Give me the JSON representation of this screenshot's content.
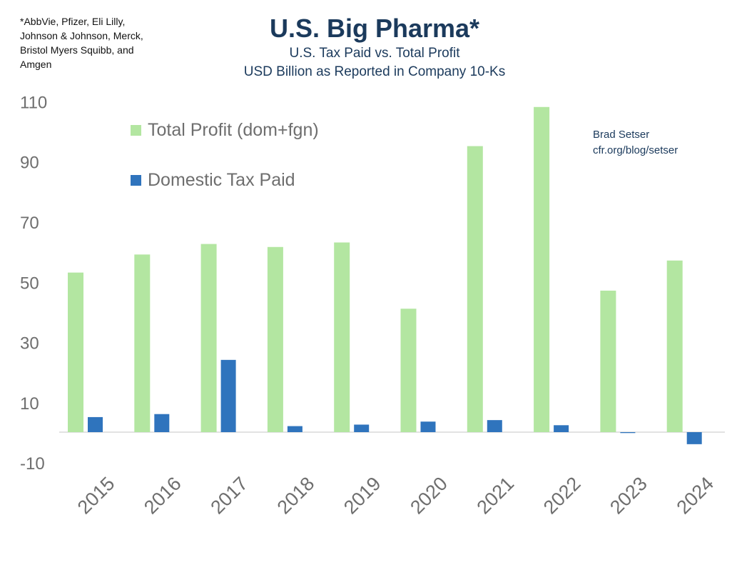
{
  "footnote": "*AbbVie, Pfizer, Eli Lilly,\nJohnson & Johnson, Merck,\nBristol Myers Squibb, and\nAmgen",
  "credit": {
    "line1": "Brad Setser",
    "line2": "cfr.org/blog/setser"
  },
  "colors": {
    "profit": "#b3e6a1",
    "tax": "#2f74bd",
    "title": "#1b3a5c",
    "axis_text": "#6e6e6e",
    "baseline": "#d9d9d9"
  },
  "chart_data": {
    "type": "bar",
    "title": "U.S. Big Pharma*",
    "subtitle_lines": [
      "U.S. Tax Paid vs. Total Profit",
      "USD Billion as Reported in Company 10-Ks"
    ],
    "categories": [
      "2015",
      "2016",
      "2017",
      "2018",
      "2019",
      "2020",
      "2021",
      "2022",
      "2023",
      "2024"
    ],
    "series": [
      {
        "name": "Total Profit (dom+fgn)",
        "values": [
          53,
          59,
          62.5,
          61.5,
          63,
          41,
          95,
          108,
          47,
          57
        ]
      },
      {
        "name": "Domestic Tax Paid",
        "values": [
          5,
          6,
          24,
          2,
          2.5,
          3.5,
          4,
          2.3,
          -0.3,
          -4
        ]
      }
    ],
    "yticks": [
      110,
      90,
      70,
      50,
      30,
      10,
      -10
    ],
    "ylim": [
      -14,
      114
    ],
    "xlabel": "",
    "ylabel": "",
    "grid": false,
    "legend_position": "top-left"
  }
}
